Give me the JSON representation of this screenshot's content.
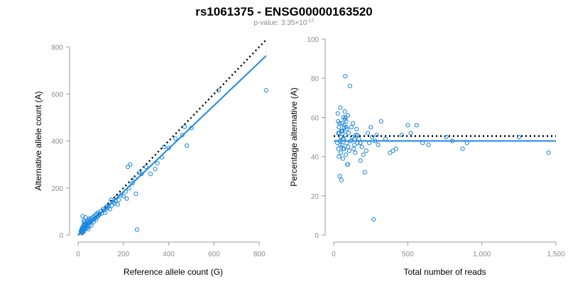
{
  "header": {
    "title": "rs1061375 - ENSG00000163520",
    "pvalue_prefix": "p-value: 3.35×10",
    "pvalue_exponent": "-12"
  },
  "colors": {
    "points": "#1a86d9",
    "fit": "#1e88e5",
    "reference": "#000000",
    "axis": "#9a9a9a"
  },
  "chart_data": [
    {
      "type": "scatter",
      "xlabel": "Reference allele count (G)",
      "ylabel": "Alternative allele count (A)",
      "xlim": [
        0,
        840
      ],
      "ylim": [
        0,
        800
      ],
      "xticks": [
        0,
        200,
        400,
        600,
        800
      ],
      "yticks": [
        0,
        200,
        400,
        600,
        800
      ],
      "xtick_labels": [
        "0",
        "200",
        "400",
        "600",
        "800"
      ],
      "ytick_labels": [
        "0",
        "200",
        "400",
        "600",
        "800"
      ],
      "fit_line": [
        [
          0,
          0
        ],
        [
          830,
          762
        ]
      ],
      "reference_line": [
        [
          0,
          0
        ],
        [
          830,
          830
        ]
      ],
      "series": [
        {
          "x": [
            12,
            14,
            15,
            16,
            17,
            18,
            19,
            20,
            21,
            22,
            24,
            25,
            26,
            27,
            28,
            30,
            32,
            34,
            36,
            38,
            40,
            42,
            44,
            46,
            48,
            50,
            52,
            55,
            58,
            60,
            62,
            65,
            68,
            70,
            72,
            75,
            78,
            80,
            82,
            85,
            88,
            90,
            95,
            100,
            105,
            110,
            115,
            120,
            125,
            130,
            135,
            140,
            145,
            150,
            155,
            160,
            165,
            170,
            175,
            180,
            190,
            200,
            210,
            215,
            220,
            225,
            230,
            240,
            250,
            255,
            260,
            270,
            280,
            300,
            320,
            340,
            350,
            370,
            380,
            400,
            430,
            460,
            470,
            480,
            500,
            620,
            830,
            20,
            25,
            30,
            33,
            40,
            45,
            50,
            18,
            28,
            35
          ],
          "y": [
            15,
            20,
            10,
            25,
            18,
            30,
            12,
            22,
            35,
            28,
            40,
            15,
            45,
            20,
            32,
            25,
            50,
            38,
            42,
            30,
            55,
            48,
            35,
            60,
            52,
            45,
            65,
            58,
            40,
            70,
            62,
            75,
            55,
            80,
            68,
            72,
            85,
            65,
            90,
            78,
            95,
            82,
            88,
            100,
            92,
            110,
            105,
            95,
            120,
            115,
            130,
            110,
            150,
            125,
            140,
            135,
            145,
            160,
            130,
            150,
            170,
            165,
            185,
            155,
            290,
            200,
            300,
            220,
            240,
            175,
            23,
            265,
            260,
            290,
            260,
            280,
            305,
            330,
            375,
            370,
            410,
            425,
            460,
            380,
            455,
            615,
            615,
            80,
            60,
            30,
            75,
            45,
            25,
            70,
            8,
            55,
            50
          ]
        }
      ]
    },
    {
      "type": "scatter",
      "xlabel": "Total number of reads",
      "ylabel": "Percentage alternative (A)",
      "xlim": [
        0,
        1500
      ],
      "ylim": [
        0,
        100
      ],
      "xticks": [
        0,
        500,
        1000,
        1500
      ],
      "yticks": [
        0,
        20,
        40,
        60,
        80,
        100
      ],
      "xtick_labels": [
        "0",
        "500",
        "1,000",
        "1,500"
      ],
      "ytick_labels": [
        "0",
        "20",
        "40",
        "60",
        "80",
        "100"
      ],
      "fit_line": [
        [
          0,
          48
        ],
        [
          1500,
          48
        ]
      ],
      "reference_line": [
        [
          0,
          50.5
        ],
        [
          1500,
          50.5
        ]
      ],
      "series": [
        {
          "x": [
            25,
            28,
            30,
            32,
            35,
            38,
            40,
            42,
            45,
            48,
            50,
            52,
            55,
            58,
            60,
            62,
            65,
            68,
            70,
            72,
            75,
            78,
            80,
            82,
            85,
            88,
            90,
            92,
            95,
            98,
            100,
            105,
            110,
            115,
            120,
            125,
            130,
            135,
            140,
            145,
            150,
            155,
            160,
            170,
            180,
            190,
            200,
            210,
            220,
            230,
            240,
            250,
            260,
            270,
            280,
            290,
            300,
            320,
            350,
            380,
            400,
            420,
            460,
            500,
            520,
            560,
            600,
            640,
            760,
            800,
            870,
            900,
            1250,
            1450,
            30,
            40,
            50,
            60,
            70,
            80,
            35,
            45,
            55,
            65,
            75,
            85,
            95,
            140,
            160,
            180
          ],
          "y": [
            47,
            62,
            58,
            44,
            55,
            52,
            30,
            48,
            65,
            42,
            50,
            28,
            57,
            46,
            53,
            39,
            60,
            49,
            44,
            56,
            63,
            81,
            51,
            41,
            58,
            47,
            54,
            36,
            61,
            45,
            52,
            43,
            76,
            48,
            55,
            50,
            57,
            44,
            46,
            42,
            51,
            54,
            47,
            49,
            38,
            45,
            41,
            32,
            43,
            52,
            47,
            55,
            50,
            8,
            48,
            51,
            46,
            58,
            49,
            42,
            43,
            44,
            51,
            56,
            52,
            56,
            47,
            46,
            50,
            48,
            44,
            47,
            50,
            42,
            52,
            57,
            53,
            49,
            55,
            60,
            40,
            46,
            53,
            44,
            59,
            55,
            36,
            49,
            51,
            47
          ]
        }
      ]
    }
  ]
}
